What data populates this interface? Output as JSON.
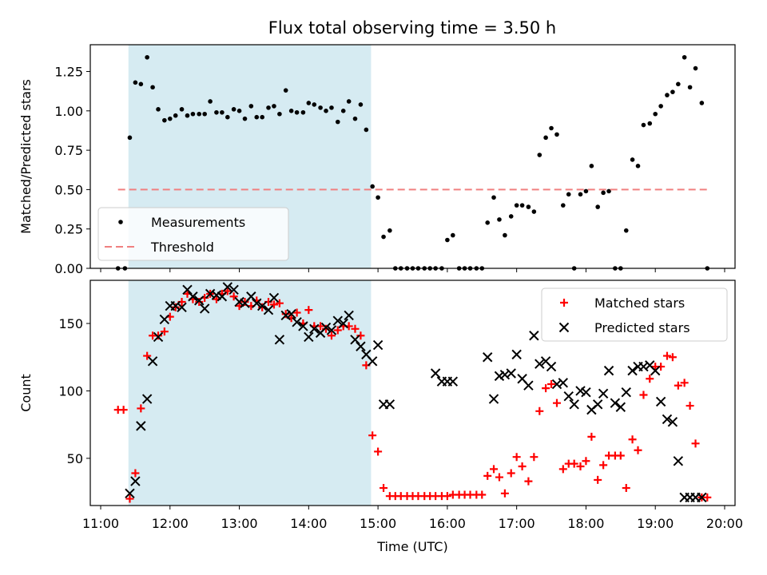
{
  "title": "Flux total observing time = 3.50 h",
  "chart_data": [
    {
      "type": "scatter",
      "panel": "top",
      "ylabel": "Matched/Predicted stars",
      "ylim": [
        0,
        1.42
      ],
      "yticks": [
        "0.00",
        "0.25",
        "0.50",
        "0.75",
        "1.00",
        "1.25"
      ],
      "ytick_values": [
        0,
        0.25,
        0.5,
        0.75,
        1.0,
        1.25
      ],
      "xlim": [
        10.85,
        20.15
      ],
      "shaded_region": [
        11.4,
        14.9
      ],
      "legend_placement": "lower-left",
      "series": [
        {
          "name": "Measurements",
          "color": "#000000",
          "marker": "dot",
          "x": [
            11.25,
            11.35,
            11.42,
            11.5,
            11.58,
            11.67,
            11.75,
            11.83,
            11.92,
            12.0,
            12.08,
            12.17,
            12.25,
            12.33,
            12.42,
            12.5,
            12.58,
            12.67,
            12.75,
            12.83,
            12.92,
            13.0,
            13.08,
            13.17,
            13.25,
            13.33,
            13.42,
            13.5,
            13.58,
            13.67,
            13.75,
            13.83,
            13.92,
            14.0,
            14.08,
            14.17,
            14.25,
            14.33,
            14.42,
            14.5,
            14.58,
            14.67,
            14.75,
            14.83,
            14.92,
            15.0,
            15.08,
            15.17,
            15.25,
            15.33,
            15.42,
            15.5,
            15.58,
            15.67,
            15.75,
            15.83,
            15.92,
            16.0,
            16.08,
            16.17,
            16.25,
            16.33,
            16.42,
            16.5,
            16.58,
            16.67,
            16.75,
            16.83,
            16.92,
            17.0,
            17.08,
            17.17,
            17.25,
            17.33,
            17.42,
            17.5,
            17.58,
            17.67,
            17.75,
            17.83,
            17.92,
            18.0,
            18.08,
            18.17,
            18.25,
            18.33,
            18.42,
            18.5,
            18.58,
            18.67,
            18.75,
            18.83,
            18.92,
            19.0,
            19.08,
            19.17,
            19.25,
            19.33,
            19.42,
            19.5,
            19.58,
            19.67,
            19.75
          ],
          "y": [
            0.0,
            0.0,
            0.83,
            1.18,
            1.17,
            1.34,
            1.15,
            1.01,
            0.94,
            0.95,
            0.97,
            1.01,
            0.97,
            0.98,
            0.98,
            0.98,
            1.06,
            0.99,
            0.99,
            0.96,
            1.01,
            1.0,
            0.95,
            1.03,
            0.96,
            0.96,
            1.02,
            1.03,
            0.98,
            1.13,
            1.0,
            0.99,
            0.99,
            1.05,
            1.04,
            1.02,
            1.0,
            1.02,
            0.93,
            1.0,
            1.06,
            0.95,
            1.04,
            0.88,
            0.52,
            0.45,
            0.2,
            0.24,
            0.0,
            0.0,
            0.0,
            0.0,
            0.0,
            0.0,
            0.0,
            0.0,
            0.0,
            0.18,
            0.21,
            0.0,
            0.0,
            0.0,
            0.0,
            0.0,
            0.29,
            0.45,
            0.31,
            0.21,
            0.33,
            0.4,
            0.4,
            0.39,
            0.36,
            0.72,
            0.83,
            0.89,
            0.85,
            0.4,
            0.47,
            0.0,
            0.47,
            0.49,
            0.65,
            0.39,
            0.48,
            0.49,
            0.0,
            0.0,
            0.24,
            0.69,
            0.65,
            0.91,
            0.92,
            0.98,
            1.03,
            1.1,
            1.12,
            1.17,
            1.34,
            1.15,
            1.27,
            1.05,
            0.0
          ]
        },
        {
          "name": "Threshold",
          "color": "#f08080",
          "style": "dashed",
          "x": [
            11.25,
            19.75
          ],
          "y": [
            0.5,
            0.5
          ]
        }
      ]
    },
    {
      "type": "scatter",
      "panel": "bottom",
      "ylabel": "Count",
      "xlabel": "Time (UTC)",
      "ylim": [
        15,
        182
      ],
      "yticks": [
        "50",
        "100",
        "150"
      ],
      "ytick_values": [
        50,
        100,
        150
      ],
      "xlim": [
        10.85,
        20.15
      ],
      "xticks": [
        "11:00",
        "12:00",
        "13:00",
        "14:00",
        "15:00",
        "16:00",
        "17:00",
        "18:00",
        "19:00",
        "20:00"
      ],
      "xtick_values": [
        11,
        12,
        13,
        14,
        15,
        16,
        17,
        18,
        19,
        20
      ],
      "shaded_region": [
        11.4,
        14.9
      ],
      "legend_placement": "upper-right",
      "series": [
        {
          "name": "Matched stars",
          "color": "#ff0000",
          "marker": "plus",
          "x": [
            11.25,
            11.33,
            11.42,
            11.5,
            11.58,
            11.67,
            11.75,
            11.83,
            11.92,
            12.0,
            12.08,
            12.17,
            12.25,
            12.33,
            12.42,
            12.5,
            12.58,
            12.67,
            12.75,
            12.83,
            12.92,
            13.0,
            13.08,
            13.17,
            13.25,
            13.33,
            13.42,
            13.5,
            13.58,
            13.67,
            13.75,
            13.83,
            13.92,
            14.0,
            14.08,
            14.17,
            14.25,
            14.33,
            14.42,
            14.5,
            14.58,
            14.67,
            14.75,
            14.83,
            14.92,
            15.0,
            15.08,
            15.17,
            15.25,
            15.33,
            15.42,
            15.5,
            15.58,
            15.67,
            15.75,
            15.83,
            15.92,
            16.0,
            16.08,
            16.17,
            16.25,
            16.33,
            16.42,
            16.5,
            16.58,
            16.67,
            16.75,
            16.83,
            16.92,
            17.0,
            17.08,
            17.17,
            17.25,
            17.33,
            17.42,
            17.5,
            17.58,
            17.67,
            17.75,
            17.83,
            17.92,
            18.0,
            18.08,
            18.17,
            18.25,
            18.33,
            18.42,
            18.5,
            18.58,
            18.67,
            18.75,
            18.83,
            18.92,
            19.0,
            19.08,
            19.17,
            19.25,
            19.33,
            19.42,
            19.5,
            19.58,
            19.67,
            19.75
          ],
          "y": [
            86,
            86,
            20,
            39,
            87,
            126,
            141,
            141,
            144,
            155,
            162,
            166,
            172,
            168,
            166,
            169,
            172,
            168,
            172,
            174,
            170,
            163,
            166,
            163,
            167,
            162,
            166,
            164,
            165,
            157,
            154,
            158,
            150,
            160,
            148,
            148,
            146,
            141,
            145,
            148,
            148,
            146,
            141,
            119,
            67,
            55,
            28,
            22,
            22,
            22,
            22,
            22,
            22,
            22,
            22,
            22,
            22,
            22,
            23,
            23,
            23,
            23,
            23,
            23,
            37,
            42,
            36,
            24,
            39,
            51,
            44,
            33,
            51,
            85,
            102,
            105,
            91,
            42,
            46,
            46,
            44,
            48,
            66,
            34,
            45,
            52,
            52,
            52,
            28,
            64,
            56,
            97,
            109,
            118,
            118,
            126,
            125,
            104,
            106,
            89,
            61,
            21,
            21
          ]
        },
        {
          "name": "Predicted stars",
          "color": "#000000",
          "marker": "x",
          "x": [
            11.42,
            11.5,
            11.58,
            11.67,
            11.75,
            11.83,
            11.92,
            12.0,
            12.08,
            12.17,
            12.25,
            12.33,
            12.42,
            12.5,
            12.58,
            12.67,
            12.75,
            12.83,
            12.92,
            13.0,
            13.08,
            13.17,
            13.25,
            13.33,
            13.42,
            13.5,
            13.58,
            13.67,
            13.75,
            13.83,
            13.92,
            14.0,
            14.08,
            14.17,
            14.25,
            14.33,
            14.42,
            14.5,
            14.58,
            14.67,
            14.75,
            14.83,
            14.92,
            15.0,
            15.08,
            15.17,
            15.83,
            15.92,
            16.0,
            16.08,
            16.58,
            16.67,
            16.75,
            16.83,
            16.92,
            17.0,
            17.08,
            17.17,
            17.25,
            17.33,
            17.42,
            17.5,
            17.58,
            17.67,
            17.75,
            17.83,
            17.92,
            18.0,
            18.08,
            18.17,
            18.25,
            18.33,
            18.42,
            18.5,
            18.58,
            18.67,
            18.75,
            18.83,
            18.92,
            19.0,
            19.08,
            19.17,
            19.25,
            19.33,
            19.42,
            19.5,
            19.58,
            19.67
          ],
          "y": [
            24,
            33,
            74,
            94,
            122,
            140,
            153,
            163,
            163,
            162,
            175,
            170,
            167,
            161,
            172,
            171,
            170,
            177,
            175,
            166,
            165,
            170,
            165,
            163,
            160,
            169,
            138,
            156,
            157,
            151,
            148,
            140,
            146,
            143,
            147,
            145,
            152,
            150,
            156,
            138,
            133,
            127,
            122,
            134,
            90,
            90,
            113,
            107,
            107,
            107,
            125,
            94,
            111,
            112,
            113,
            127,
            109,
            104,
            141,
            120,
            122,
            118,
            105,
            106,
            96,
            90,
            100,
            99,
            86,
            90,
            98,
            115,
            91,
            88,
            99,
            115,
            118,
            118,
            119,
            115,
            92,
            79,
            77,
            48,
            21,
            21,
            21,
            21
          ]
        }
      ]
    }
  ]
}
